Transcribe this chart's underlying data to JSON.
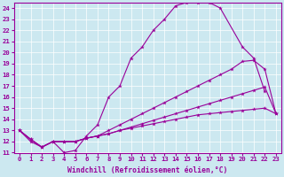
{
  "xlabel": "Windchill (Refroidissement éolien,°C)",
  "background_color": "#cce8f0",
  "line_color": "#990099",
  "xlim": [
    -0.5,
    23.5
  ],
  "ylim": [
    11,
    24.5
  ],
  "xticks": [
    0,
    1,
    2,
    3,
    4,
    5,
    6,
    7,
    8,
    9,
    10,
    11,
    12,
    13,
    14,
    15,
    16,
    17,
    18,
    19,
    20,
    21,
    22,
    23
  ],
  "yticks": [
    11,
    12,
    13,
    14,
    15,
    16,
    17,
    18,
    19,
    20,
    21,
    22,
    23,
    24
  ],
  "line1_x": [
    0,
    1,
    2,
    3,
    4,
    5,
    6,
    7,
    8,
    9,
    10,
    11,
    12,
    13,
    14,
    15,
    16,
    17,
    18,
    20,
    21,
    22
  ],
  "line1_y": [
    13,
    12,
    11.5,
    12,
    11,
    11.2,
    12.5,
    13.5,
    16,
    17,
    19.5,
    20.5,
    22,
    23,
    24.2,
    24.5,
    24.5,
    24.5,
    24,
    20.5,
    19.5,
    16.5
  ],
  "line2_x": [
    0,
    1,
    2,
    3,
    4,
    5,
    6,
    7,
    8,
    9,
    10,
    11,
    12,
    13,
    14,
    15,
    16,
    17,
    18,
    19,
    20,
    21,
    22,
    23
  ],
  "line2_y": [
    13,
    12.2,
    11.5,
    12,
    12,
    12,
    12.3,
    12.5,
    13,
    13.5,
    14,
    14.5,
    15,
    15.5,
    16,
    16.5,
    17,
    17.5,
    18,
    18.5,
    19.2,
    19.3,
    18.5,
    14.5
  ],
  "line3_x": [
    0,
    1,
    2,
    3,
    4,
    5,
    6,
    7,
    8,
    9,
    10,
    11,
    12,
    13,
    14,
    15,
    16,
    17,
    18,
    19,
    20,
    21,
    22,
    23
  ],
  "line3_y": [
    13,
    12.2,
    11.5,
    12,
    12,
    12,
    12.3,
    12.5,
    12.7,
    13,
    13.3,
    13.6,
    13.9,
    14.2,
    14.5,
    14.8,
    15.1,
    15.4,
    15.7,
    16,
    16.3,
    16.6,
    16.9,
    14.5
  ],
  "line4_x": [
    0,
    1,
    2,
    3,
    4,
    5,
    6,
    7,
    8,
    9,
    10,
    11,
    12,
    13,
    14,
    15,
    16,
    17,
    18,
    19,
    20,
    21,
    22,
    23
  ],
  "line4_y": [
    13,
    12.2,
    11.5,
    12,
    12,
    12,
    12.3,
    12.5,
    12.7,
    13,
    13.2,
    13.4,
    13.6,
    13.8,
    14.0,
    14.2,
    14.4,
    14.5,
    14.6,
    14.7,
    14.8,
    14.9,
    15.0,
    14.5
  ]
}
